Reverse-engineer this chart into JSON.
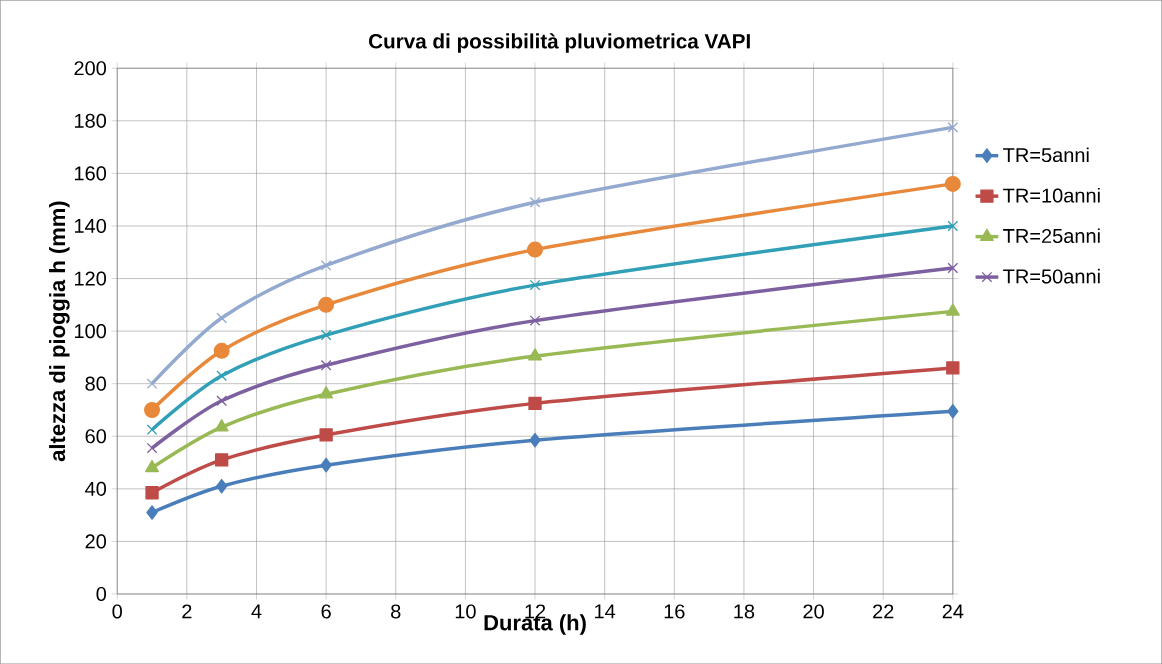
{
  "chart_data": {
    "type": "line",
    "title": "Curva di possibilità pluviometrica VAPI",
    "xlabel": "Durata (h)",
    "ylabel": "altezza di pioggia h (mm)",
    "x": [
      1,
      3,
      6,
      12,
      24
    ],
    "series": [
      {
        "name": "TR=5anni",
        "color": "#4a7ebb",
        "marker": "diamond",
        "values": [
          31,
          41,
          49,
          58.5,
          69.5
        ]
      },
      {
        "name": "TR=10anni",
        "color": "#be4b48",
        "marker": "square",
        "values": [
          38.5,
          51,
          60.5,
          72.5,
          86
        ]
      },
      {
        "name": "TR=25anni",
        "color": "#98b954",
        "marker": "triangle",
        "values": [
          48,
          63.5,
          76,
          90.5,
          107.5
        ]
      },
      {
        "name": "TR=50anni",
        "color": "#7d60a0",
        "marker": "cross",
        "values": [
          55.5,
          73.5,
          87,
          104,
          124
        ]
      },
      {
        "color": "#31a0b7",
        "marker": "cross",
        "values": [
          62.5,
          83,
          98.5,
          117.5,
          140
        ]
      },
      {
        "color": "#e8883a",
        "marker": "circle",
        "values": [
          70,
          92.5,
          110,
          131,
          156
        ]
      },
      {
        "color": "#93a9cf",
        "marker": "cross",
        "values": [
          80,
          105,
          125,
          149,
          177.5
        ]
      }
    ],
    "xlim": [
      0,
      24
    ],
    "xticks": [
      0,
      2,
      4,
      6,
      8,
      10,
      12,
      14,
      16,
      18,
      20,
      22,
      24
    ],
    "ylim": [
      0,
      200
    ],
    "yticks": [
      0,
      20,
      40,
      60,
      80,
      100,
      120,
      140,
      160,
      180,
      200
    ],
    "grid": true,
    "legend": "right",
    "line_style": "solid"
  }
}
